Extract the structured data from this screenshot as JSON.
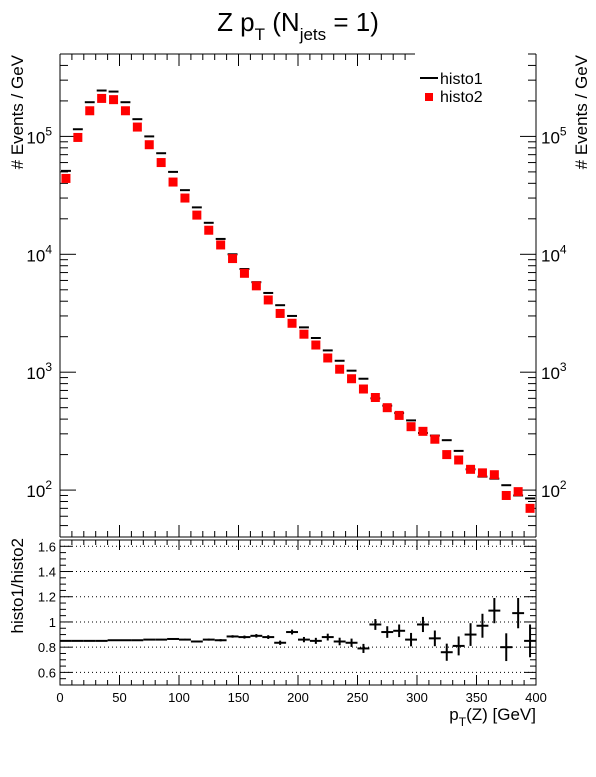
{
  "chart_data": [
    {
      "type": "scatter",
      "title_main": "Z p",
      "title_sub1": "T",
      "title_mid": " (N",
      "title_sub2": "jets",
      "title_end": " = 1)",
      "ylabel": "# Events / GeV",
      "ylabel_right": "# Events / GeV",
      "yscale": "log",
      "xlim": [
        0,
        400
      ],
      "ylim": [
        40,
        500000
      ],
      "ytick_labels": [
        {
          "base": "10",
          "exp": "2",
          "value": 100
        },
        {
          "base": "10",
          "exp": "3",
          "value": 1000
        },
        {
          "base": "10",
          "exp": "4",
          "value": 10000
        },
        {
          "base": "10",
          "exp": "5",
          "value": 100000
        }
      ],
      "legend_position": "top-right",
      "bin_width": 10,
      "x": [
        5,
        15,
        25,
        35,
        45,
        55,
        65,
        75,
        85,
        95,
        105,
        115,
        125,
        135,
        145,
        155,
        165,
        175,
        185,
        195,
        205,
        215,
        225,
        235,
        245,
        255,
        265,
        275,
        285,
        295,
        305,
        315,
        325,
        335,
        345,
        355,
        365,
        375,
        385,
        395
      ],
      "series": [
        {
          "name": "histo1",
          "marker": "line",
          "color": "#000000",
          "values": [
            51000,
            115000,
            195000,
            245000,
            240000,
            195000,
            140000,
            100000,
            72000,
            50000,
            35000,
            25000,
            18500,
            13500,
            10000,
            7500,
            5800,
            4700,
            3700,
            3000,
            2400,
            1950,
            1530,
            1250,
            1030,
            880,
            600,
            520,
            450,
            390,
            305,
            290,
            265,
            215,
            150,
            130,
            125,
            110,
            90,
            85
          ]
        },
        {
          "name": "histo2",
          "marker": "square",
          "color": "#ff0000",
          "values": [
            44000,
            98000,
            165000,
            210000,
            205000,
            165000,
            120000,
            85000,
            60000,
            41000,
            30000,
            21500,
            16000,
            12000,
            9200,
            6900,
            5400,
            4100,
            3150,
            2600,
            2100,
            1700,
            1320,
            1060,
            880,
            720,
            610,
            500,
            430,
            345,
            315,
            270,
            200,
            180,
            150,
            140,
            135,
            90,
            97,
            70
          ]
        }
      ]
    },
    {
      "type": "scatter",
      "xlabel_main": "p",
      "xlabel_sub": "T",
      "xlabel_end": "(Z) [GeV]",
      "ylabel": "histo1/histo2",
      "xlim": [
        0,
        400
      ],
      "ylim": [
        0.5,
        1.65
      ],
      "xticks": [
        0,
        50,
        100,
        150,
        200,
        250,
        300,
        350,
        400
      ],
      "xtick_labels": [
        "0",
        "50",
        "100",
        "150",
        "200",
        "250",
        "300",
        "350",
        "400"
      ],
      "yticks": [
        0.6,
        0.8,
        1.0,
        1.2,
        1.4,
        1.6
      ],
      "ytick_labels": [
        "0.6",
        "0.8",
        "1",
        "1.2",
        "1.4",
        "1.6"
      ],
      "grid": "horizontal dotted",
      "x": [
        5,
        15,
        25,
        35,
        45,
        55,
        65,
        75,
        85,
        95,
        105,
        115,
        125,
        135,
        145,
        155,
        165,
        175,
        185,
        195,
        205,
        215,
        225,
        235,
        245,
        255,
        265,
        275,
        285,
        295,
        305,
        315,
        325,
        335,
        345,
        355,
        365,
        375,
        385,
        395
      ],
      "values": [
        0.85,
        0.85,
        0.85,
        0.85,
        0.855,
        0.855,
        0.855,
        0.86,
        0.86,
        0.865,
        0.86,
        0.845,
        0.86,
        0.855,
        0.885,
        0.88,
        0.89,
        0.88,
        0.835,
        0.92,
        0.86,
        0.85,
        0.88,
        0.845,
        0.835,
        0.79,
        0.98,
        0.92,
        0.93,
        0.86,
        0.98,
        0.87,
        0.76,
        0.81,
        0.9,
        0.97,
        1.09,
        0.8,
        1.07,
        0.85
      ],
      "errors": [
        0.003,
        0.003,
        0.003,
        0.003,
        0.003,
        0.003,
        0.004,
        0.004,
        0.005,
        0.005,
        0.006,
        0.007,
        0.008,
        0.009,
        0.01,
        0.012,
        0.014,
        0.015,
        0.017,
        0.019,
        0.021,
        0.024,
        0.027,
        0.03,
        0.033,
        0.036,
        0.043,
        0.046,
        0.05,
        0.053,
        0.06,
        0.062,
        0.068,
        0.075,
        0.09,
        0.095,
        0.1,
        0.11,
        0.12,
        0.13
      ]
    }
  ]
}
